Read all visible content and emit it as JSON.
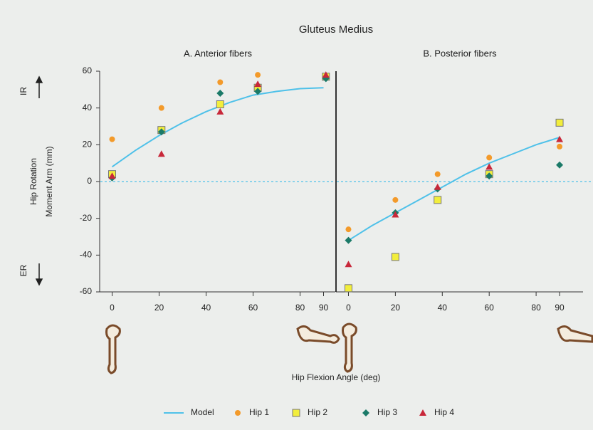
{
  "figure": {
    "title": "Gluteus Medius",
    "ylabel_top": "Hip Rotation",
    "ylabel_bottom": "Moment Arm (mm)",
    "ir": "IR",
    "er": "ER",
    "xlabel": "Hip Flexion Angle (deg)"
  },
  "chart_data": [
    {
      "type": "scatter",
      "title": "A. Anterior fibers",
      "xlim": [
        -5,
        95
      ],
      "ylim": [
        -60,
        60
      ],
      "xticks": [
        0,
        20,
        40,
        60,
        80,
        90
      ],
      "yticks": [
        -60,
        -40,
        -20,
        0,
        20,
        40,
        60
      ],
      "series": [
        {
          "name": "Model",
          "color": "#4fc1e9",
          "marker": "line",
          "x": [
            0,
            10,
            20,
            30,
            40,
            50,
            60,
            70,
            80,
            90
          ],
          "values": [
            8,
            17,
            25,
            32,
            38,
            43,
            47,
            49,
            50.5,
            51
          ]
        },
        {
          "name": "Hip 1",
          "color": "#f39a2a",
          "marker": "circle",
          "x": [
            0,
            21,
            46,
            62,
            91
          ],
          "values": [
            23,
            40,
            54,
            58,
            57
          ]
        },
        {
          "name": "Hip 2",
          "color": "#f2ee3c",
          "marker": "square",
          "x": [
            0,
            21,
            46,
            62,
            91
          ],
          "values": [
            4,
            28,
            42,
            51,
            57
          ]
        },
        {
          "name": "Hip 3",
          "color": "#1b7a68",
          "marker": "diamond",
          "x": [
            0,
            21,
            46,
            62,
            91
          ],
          "values": [
            2,
            27,
            48,
            49,
            56
          ]
        },
        {
          "name": "Hip 4",
          "color": "#c8283a",
          "marker": "triangle",
          "x": [
            0,
            21,
            46,
            62,
            91
          ],
          "values": [
            3,
            15,
            38,
            53,
            58
          ]
        }
      ]
    },
    {
      "type": "scatter",
      "title": "B. Posterior fibers",
      "xlim": [
        -5,
        100
      ],
      "ylim": [
        -60,
        60
      ],
      "xticks": [
        0,
        20,
        40,
        60,
        80,
        90
      ],
      "series": [
        {
          "name": "Model",
          "color": "#4fc1e9",
          "marker": "line",
          "x": [
            0,
            10,
            20,
            30,
            40,
            50,
            60,
            70,
            80,
            90
          ],
          "values": [
            -32,
            -24,
            -17,
            -10,
            -3,
            4,
            10,
            15,
            20,
            24
          ]
        },
        {
          "name": "Hip 1",
          "color": "#f39a2a",
          "marker": "circle",
          "x": [
            0,
            20,
            38,
            60,
            90
          ],
          "values": [
            -26,
            -10,
            4,
            13,
            19
          ]
        },
        {
          "name": "Hip 2",
          "color": "#f2ee3c",
          "marker": "square",
          "x": [
            0,
            20,
            38,
            60,
            90
          ],
          "values": [
            -58,
            -41,
            -10,
            4,
            32
          ]
        },
        {
          "name": "Hip 3",
          "color": "#1b7a68",
          "marker": "diamond",
          "x": [
            0,
            20,
            38,
            60,
            90
          ],
          "values": [
            -32,
            -17,
            -4,
            3,
            9
          ]
        },
        {
          "name": "Hip 4",
          "color": "#c8283a",
          "marker": "triangle",
          "x": [
            0,
            20,
            38,
            60,
            90
          ],
          "values": [
            -45,
            -18,
            -3,
            8,
            23
          ]
        }
      ]
    }
  ]
}
